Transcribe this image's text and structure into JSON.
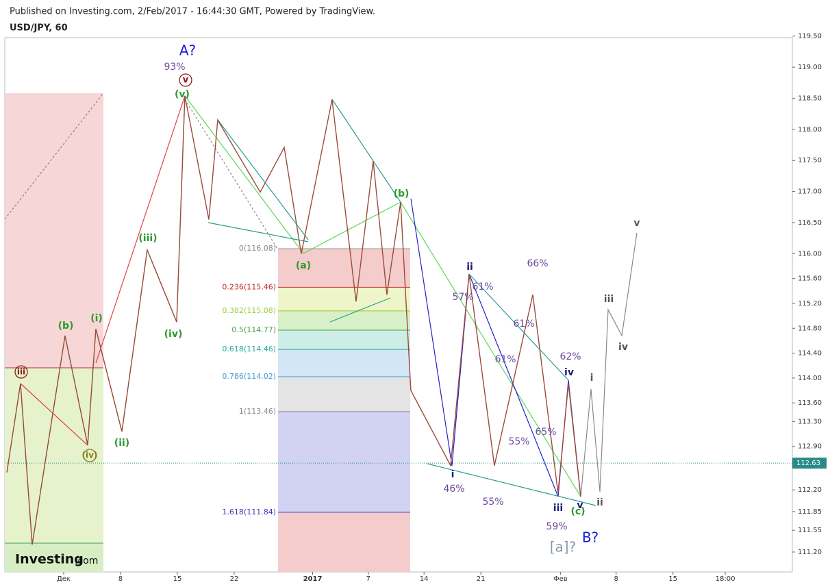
{
  "header": {
    "published": "Published on Investing.com, 2/Feb/2017 - 16:44:30 GMT, Powered by TradingView.",
    "symbol": "USD/JPY, 60"
  },
  "logo": {
    "brand": "Investing",
    "domain": ".com"
  },
  "chart_data": {
    "type": "line",
    "color": "#9c4a3a",
    "x": [
      -5.0,
      -3.8,
      -2.77,
      0.12,
      2.11,
      2.83,
      5.12,
      7.35,
      9.94,
      10.66,
      12.77,
      13.55,
      17.29,
      19.4,
      20.9,
      23.61,
      25.72,
      27.23,
      28.43,
      29.64,
      30.54,
      34.04,
      35.66,
      37.89,
      41.27,
      43.49,
      44.4,
      45.48
    ],
    "values": [
      112.48,
      113.91,
      111.32,
      114.68,
      112.92,
      114.79,
      113.14,
      116.06,
      114.9,
      118.54,
      116.55,
      118.15,
      116.99,
      117.71,
      116.0,
      118.48,
      115.23,
      117.49,
      115.34,
      116.83,
      113.8,
      112.59,
      115.67,
      112.59,
      115.34,
      112.15,
      113.91,
      112.09
    ],
    "xlim": [
      -5.18,
      64.1
    ],
    "ylim": [
      110.88,
      119.53
    ],
    "xticks": [
      {
        "value": 0,
        "label": "Дек"
      },
      {
        "value": 5,
        "label": "8"
      },
      {
        "value": 10,
        "label": "15"
      },
      {
        "value": 15,
        "label": "22"
      },
      {
        "value": 21.9,
        "label": "2017"
      },
      {
        "value": 26.8,
        "label": "7"
      },
      {
        "value": 31.7,
        "label": "14"
      },
      {
        "value": 36.7,
        "label": "21"
      },
      {
        "value": 43.7,
        "label": "Фев"
      },
      {
        "value": 48.6,
        "label": "8"
      },
      {
        "value": 53.6,
        "label": "15"
      },
      {
        "value": 58.2,
        "label": "18:00"
      }
    ],
    "yticks": [
      {
        "value": 119.5,
        "label": "119.50"
      },
      {
        "value": 119,
        "label": "119.00"
      },
      {
        "value": 118.5,
        "label": "118.50"
      },
      {
        "value": 118,
        "label": "118.00"
      },
      {
        "value": 117.5,
        "label": "117.50"
      },
      {
        "value": 117,
        "label": "117.00"
      },
      {
        "value": 116.5,
        "label": "116.50"
      },
      {
        "value": 116,
        "label": "116.00"
      },
      {
        "value": 115.6,
        "label": "115.60"
      },
      {
        "value": 115.2,
        "label": "115.20"
      },
      {
        "value": 114.8,
        "label": "114.80"
      },
      {
        "value": 114.4,
        "label": "114.40"
      },
      {
        "value": 114,
        "label": "114.00"
      },
      {
        "value": 113.6,
        "label": "113.60"
      },
      {
        "value": 113.3,
        "label": "113.30"
      },
      {
        "value": 112.9,
        "label": "112.90"
      },
      {
        "value": 112.2,
        "label": "112.20"
      },
      {
        "value": 111.85,
        "label": "111.85"
      },
      {
        "value": 111.55,
        "label": "111.55"
      },
      {
        "value": 111.2,
        "label": "111.20"
      }
    ],
    "last_price": 112.63,
    "fib_levels": [
      {
        "value": 116.08,
        "label": "0(116.08)",
        "color": "#8a8a8a"
      },
      {
        "value": 115.46,
        "label": "0.236(115.46)",
        "color": "#c62828"
      },
      {
        "value": 115.08,
        "label": "0.382(115.08)",
        "color": "#9acd32"
      },
      {
        "value": 114.77,
        "label": "0.5(114.77)",
        "color": "#43a047"
      },
      {
        "value": 114.46,
        "label": "0.618(114.46)",
        "color": "#26a69a"
      },
      {
        "value": 114.02,
        "label": "0.786(114.02)",
        "color": "#3d9bd6"
      },
      {
        "value": 113.46,
        "label": "1(113.46)",
        "color": "#8a8a8a"
      },
      {
        "value": 111.84,
        "label": "1.618(111.84)",
        "color": "#3a3ab8"
      }
    ],
    "annotations": [
      "A?",
      "93%",
      "v",
      "(v)",
      "(iii)",
      "(i)",
      "(b)",
      "(iv)",
      "(ii)",
      "iii",
      "(iv)",
      "(a)",
      "(b)",
      "ii",
      "57%",
      "61%",
      "66%",
      "61%",
      "61%",
      "62%",
      "iv",
      "i",
      "55%",
      "65%",
      "i",
      "46%",
      "55%",
      "iii",
      "v",
      "(c)",
      "ii",
      "59%",
      "B?",
      "[a]?",
      "iii",
      "iv",
      "v"
    ]
  }
}
